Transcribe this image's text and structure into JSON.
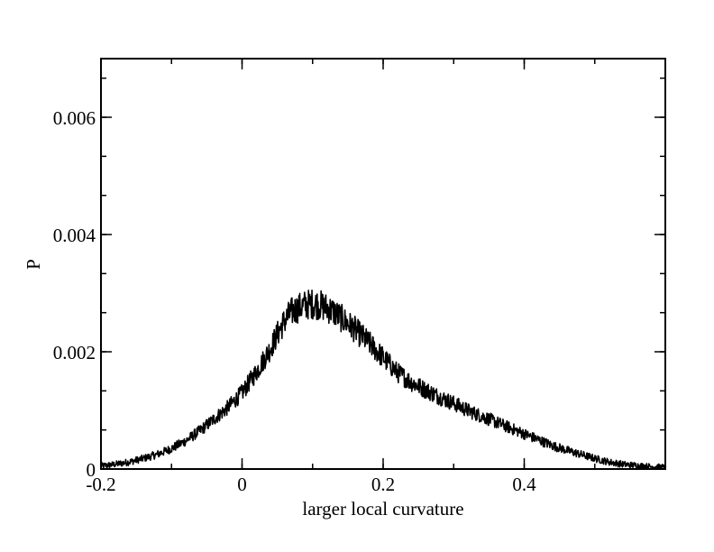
{
  "chart_data": {
    "type": "line",
    "title": "",
    "xlabel": "larger local curvature",
    "ylabel": "P",
    "xlim": [
      -0.2,
      0.6
    ],
    "ylim": [
      0,
      0.007
    ],
    "grid": false,
    "legend": "none",
    "line_color": "#000000",
    "x_ticks": [
      {
        "value": -0.2,
        "label": "-0.2"
      },
      {
        "value": 0,
        "label": "0"
      },
      {
        "value": 0.2,
        "label": "0.2"
      },
      {
        "value": 0.4,
        "label": "0.4"
      }
    ],
    "x_minor_step": 0.1,
    "y_ticks": [
      {
        "value": 0,
        "label": "0"
      },
      {
        "value": 0.002,
        "label": "0.002"
      },
      {
        "value": 0.004,
        "label": "0.004"
      },
      {
        "value": 0.006,
        "label": "0.006"
      }
    ],
    "y_minor_step": 0.00066667,
    "series": [
      {
        "x": [
          -0.2,
          -0.18,
          -0.16,
          -0.14,
          -0.12,
          -0.1,
          -0.08,
          -0.06,
          -0.04,
          -0.02,
          0.0,
          0.02,
          0.04,
          0.05,
          0.06,
          0.07,
          0.08,
          0.09,
          0.1,
          0.11,
          0.12,
          0.13,
          0.14,
          0.16,
          0.18,
          0.2,
          0.22,
          0.24,
          0.26,
          0.28,
          0.3,
          0.32,
          0.34,
          0.36,
          0.38,
          0.4,
          0.42,
          0.44,
          0.46,
          0.48,
          0.5,
          0.52,
          0.54,
          0.56,
          0.58,
          0.6
        ],
        "y": [
          5e-05,
          8e-05,
          0.00012,
          0.00018,
          0.00025,
          0.00035,
          0.00048,
          0.00065,
          0.00085,
          0.00105,
          0.0013,
          0.00165,
          0.00205,
          0.0023,
          0.00252,
          0.00268,
          0.00275,
          0.0028,
          0.00282,
          0.0028,
          0.00275,
          0.00268,
          0.00258,
          0.00238,
          0.00215,
          0.0019,
          0.00165,
          0.00148,
          0.00135,
          0.00123,
          0.00112,
          0.001,
          0.0009,
          0.0008,
          0.0007,
          0.0006,
          0.0005,
          0.0004,
          0.00032,
          0.00025,
          0.00018,
          0.00012,
          8e-05,
          6e-05,
          4e-05,
          3e-05
        ]
      }
    ]
  }
}
